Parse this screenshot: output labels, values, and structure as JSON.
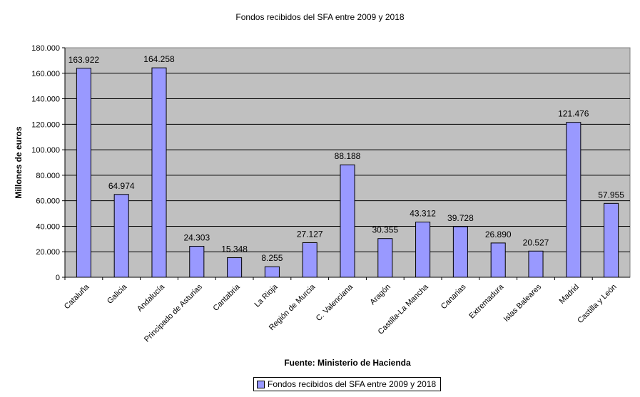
{
  "chart_data": {
    "type": "bar",
    "title": "Fondos recibidos del SFA entre 2009 y 2018",
    "xlabel": "Fuente: Ministerio de Hacienda",
    "ylabel": "Millones de euros",
    "categories": [
      "Cataluña",
      "Galicia",
      "Andalucía",
      "Principado de Asturias",
      "Cantabria",
      "La Rioja",
      "Región de Murcia",
      "C. Valenciana",
      "Aragón",
      "Castilla-La Mancha",
      "Canarias",
      "Extremadura",
      "Islas Baleares",
      "Madrid",
      "Castilla y León"
    ],
    "series": [
      {
        "name": "Fondos recibidos del SFA entre 2009 y 2018",
        "values": [
          163922,
          64974,
          164258,
          24303,
          15348,
          8255,
          27127,
          88188,
          30355,
          43312,
          39728,
          26890,
          20527,
          121476,
          57955
        ],
        "labels": [
          "163.922",
          "64.974",
          "164.258",
          "24.303",
          "15.348",
          "8.255",
          "27.127",
          "88.188",
          "30.355",
          "43.312",
          "39.728",
          "26.890",
          "20.527",
          "121.476",
          "57.955"
        ],
        "color": "#9999ff"
      }
    ],
    "yticks": [
      "0",
      "20.000",
      "40.000",
      "60.000",
      "80.000",
      "100.000",
      "120.000",
      "140.000",
      "160.000",
      "180.000"
    ],
    "ylim": [
      0,
      180000
    ],
    "grid": true,
    "legend": "bottom",
    "plot_background": "#c0c0c0"
  }
}
